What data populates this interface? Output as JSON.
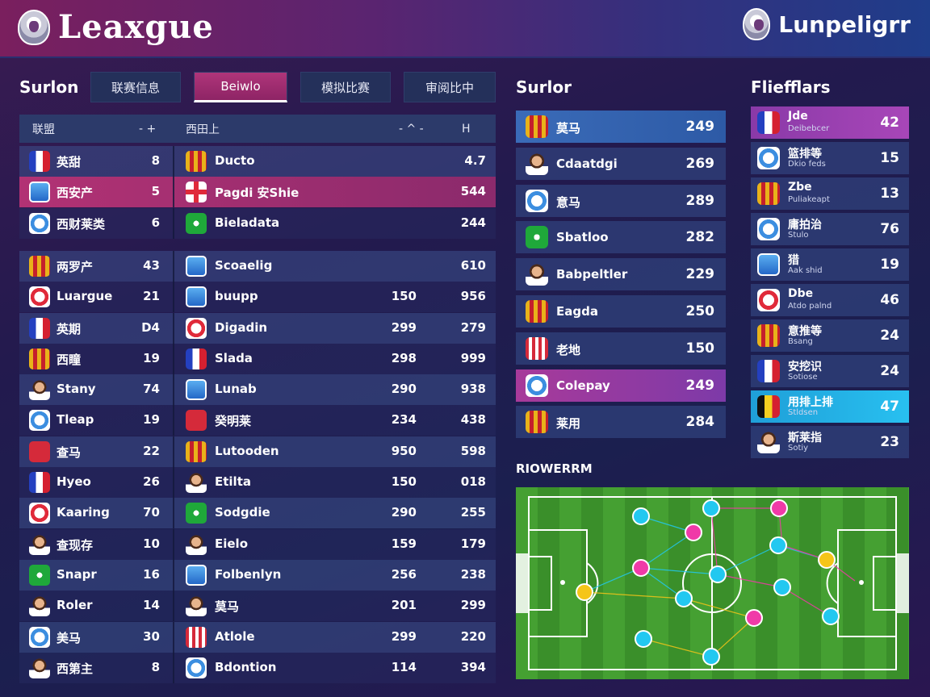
{
  "header": {
    "left_title": "Leaxgue",
    "right_title": "Lunpeligrr",
    "left_crest_icon": "crest-icon",
    "right_crest_icon": "crest-icon"
  },
  "left_panel": {
    "title": "Surlon",
    "tabs": [
      {
        "label": "联赛信息",
        "active": false
      },
      {
        "label": "Beiwlo",
        "active": true
      },
      {
        "label": "模拟比赛",
        "active": false
      },
      {
        "label": "审阅比中",
        "active": false
      }
    ],
    "table_header": {
      "c1": "联盟",
      "c1b": "- +",
      "c2": "西田上",
      "c3": "- ^ -",
      "c4": "H"
    },
    "rows": [
      {
        "icon_a": "fl-fr",
        "name1": "英甜",
        "v1": "8",
        "icon_b": "sh-gold",
        "name2": "Ducto",
        "v2": "",
        "v3": "4.7",
        "style": "odd"
      },
      {
        "icon_a": "sh-blue",
        "name1": "西安产",
        "v1": "5",
        "icon_b": "cross",
        "name2": "Pagdi 安Shie",
        "v2": "",
        "v3": "544",
        "style": "hl"
      },
      {
        "icon_a": "ball",
        "name1": "西财莱类",
        "v1": "6",
        "icon_b": "circ-green",
        "name2": "Bieladata",
        "v2": "",
        "v3": "244",
        "style": "even"
      },
      {
        "icon_a": "sh-gold",
        "name1": "两罗产",
        "v1": "43",
        "icon_b": "sh-blue",
        "name2": "Scoaelig",
        "v2": "",
        "v3": "610",
        "style": "odd"
      },
      {
        "icon_a": "ball-red",
        "name1": "Luargue",
        "v1": "21",
        "icon_b": "sh-blue",
        "name2": "buupp",
        "v2": "150",
        "v3": "956",
        "style": "even"
      },
      {
        "icon_a": "fl-fr",
        "name1": "英期",
        "v1": "D4",
        "icon_b": "ball-red",
        "name2": "Digadin",
        "v2": "299",
        "v3": "279",
        "style": "odd"
      },
      {
        "icon_a": "sh-gold",
        "name1": "西瞳",
        "v1": "19",
        "icon_b": "fl-fr",
        "name2": "Slada",
        "v2": "298",
        "v3": "999",
        "style": "even"
      },
      {
        "icon_a": "face",
        "name1": "Stany",
        "v1": "74",
        "icon_b": "sh-blue",
        "name2": "Lunab",
        "v2": "290",
        "v3": "938",
        "style": "odd"
      },
      {
        "icon_a": "ball",
        "name1": "Tleap",
        "v1": "19",
        "icon_b": "sh-red",
        "name2": "癸明莱",
        "v2": "234",
        "v3": "438",
        "style": "even"
      },
      {
        "icon_a": "sh-red",
        "name1": "查马",
        "v1": "22",
        "icon_b": "sh-gold",
        "name2": "Lutooden",
        "v2": "950",
        "v3": "598",
        "style": "odd"
      },
      {
        "icon_a": "fl-fr",
        "name1": "Hyeo",
        "v1": "26",
        "icon_b": "face",
        "name2": "Etilta",
        "v2": "150",
        "v3": "018",
        "style": "even"
      },
      {
        "icon_a": "ball-red",
        "name1": "Kaaring",
        "v1": "70",
        "icon_b": "circ-green",
        "name2": "Sodgdie",
        "v2": "290",
        "v3": "255",
        "style": "odd"
      },
      {
        "icon_a": "face",
        "name1": "查现存",
        "v1": "10",
        "icon_b": "face",
        "name2": "Eielo",
        "v2": "159",
        "v3": "179",
        "style": "even"
      },
      {
        "icon_a": "circ-green",
        "name1": "Snapr",
        "v1": "16",
        "icon_b": "sh-blue",
        "name2": "Folbenlyn",
        "v2": "256",
        "v3": "238",
        "style": "odd"
      },
      {
        "icon_a": "face",
        "name1": "Roler",
        "v1": "14",
        "icon_b": "face",
        "name2": "莫马",
        "v2": "201",
        "v3": "299",
        "style": "even"
      },
      {
        "icon_a": "ball",
        "name1": "美马",
        "v1": "30",
        "icon_b": "stripe",
        "name2": "Atlole",
        "v2": "299",
        "v3": "220",
        "style": "odd"
      },
      {
        "icon_a": "face",
        "name1": "西第主",
        "v1": "8",
        "icon_b": "ball",
        "name2": "Bdontion",
        "v2": "114",
        "v3": "394",
        "style": "even"
      }
    ]
  },
  "middle_panel": {
    "title": "Surlor",
    "rows": [
      {
        "icon": "sh-gold",
        "name": "莫马",
        "value": "249",
        "style": "hl-blue"
      },
      {
        "icon": "face",
        "name": "Cdaatdgi",
        "value": "269",
        "style": ""
      },
      {
        "icon": "ball",
        "name": "意马",
        "value": "289",
        "style": ""
      },
      {
        "icon": "circ-green",
        "name": "Sbatloo",
        "value": "282",
        "style": ""
      },
      {
        "icon": "face",
        "name": "Babpeltler",
        "value": "229",
        "style": ""
      },
      {
        "icon": "sh-gold",
        "name": "Eagda",
        "value": "250",
        "style": ""
      },
      {
        "icon": "stripe",
        "name": "老地",
        "value": "150",
        "style": ""
      },
      {
        "icon": "ball",
        "name": "Colepay",
        "value": "249",
        "style": "hl-purple"
      },
      {
        "icon": "sh-gold",
        "name": "莱用",
        "value": "284",
        "style": ""
      }
    ]
  },
  "right_panel": {
    "title": "Fliefflars",
    "rows": [
      {
        "icon": "fl-fr",
        "name": "Jde",
        "sub": "Deibebcer",
        "value": "42",
        "style": "hl-purple"
      },
      {
        "icon": "ball",
        "name": "篮排等",
        "sub": "Dkio feds",
        "value": "15",
        "style": ""
      },
      {
        "icon": "sh-gold",
        "name": "Zbe",
        "sub": "Puliakeapt",
        "value": "13",
        "style": ""
      },
      {
        "icon": "ball",
        "name": "庸拍治",
        "sub": "Stulo",
        "value": "76",
        "style": ""
      },
      {
        "icon": "sh-blue",
        "name": "猎",
        "sub": "Aak shid",
        "value": "19",
        "style": ""
      },
      {
        "icon": "ball-red",
        "name": "Dbe",
        "sub": "Atdo palnd",
        "value": "46",
        "style": ""
      },
      {
        "icon": "sh-gold",
        "name": "意推等",
        "sub": "Bsang",
        "value": "24",
        "style": ""
      },
      {
        "icon": "fl-fr",
        "name": "安挖识",
        "sub": "Sotiose",
        "value": "24",
        "style": ""
      },
      {
        "icon": "fl-be",
        "name": "用排上排",
        "sub": "Stldsen",
        "value": "47",
        "style": "hl-cyan"
      },
      {
        "icon": "face",
        "name": "斯莱指",
        "sub": "Sotiy",
        "value": "23",
        "style": ""
      }
    ]
  },
  "pitch": {
    "title": "RIOWERRM",
    "colors": {
      "cyan": "#22c8f0",
      "pink": "#f03aa8",
      "yellow": "#f5c518",
      "grass": "#3f9a2e"
    }
  }
}
